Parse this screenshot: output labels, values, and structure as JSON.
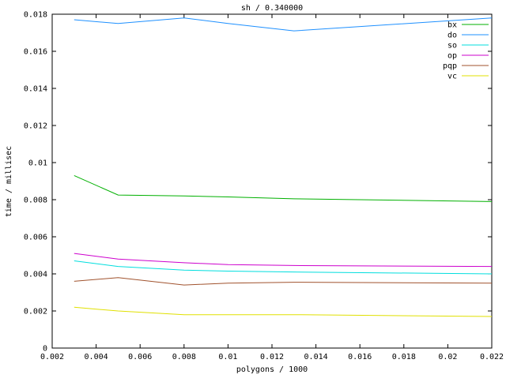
{
  "chart_data": {
    "type": "line",
    "title": "sh / 0.340000",
    "xlabel": "polygons / 1000",
    "ylabel": "time / millisec",
    "xlim": [
      0.002,
      0.022
    ],
    "ylim": [
      0,
      0.018
    ],
    "xtick_labels": [
      "0.002",
      "0.004",
      "0.006",
      "0.008",
      "0.01",
      "0.012",
      "0.014",
      "0.016",
      "0.018",
      "0.02",
      "0.022"
    ],
    "xtick_values": [
      0.002,
      0.004,
      0.006,
      0.008,
      0.01,
      0.012,
      0.014,
      0.016,
      0.018,
      0.02,
      0.022
    ],
    "ytick_labels": [
      "0",
      "0.002",
      "0.004",
      "0.006",
      "0.008",
      "0.01",
      "0.012",
      "0.014",
      "0.016",
      "0.018"
    ],
    "ytick_values": [
      0,
      0.002,
      0.004,
      0.006,
      0.008,
      0.01,
      0.012,
      0.014,
      0.016,
      0.018
    ],
    "x": [
      0.003,
      0.005,
      0.008,
      0.01,
      0.013,
      0.022
    ],
    "series": [
      {
        "name": "bx",
        "color": "#00b000",
        "values": [
          0.0093,
          0.00825,
          0.0082,
          0.00815,
          0.00805,
          0.0079
        ]
      },
      {
        "name": "do",
        "color": "#1e90ff",
        "values": [
          0.0177,
          0.0175,
          0.0178,
          0.0175,
          0.0171,
          0.0178
        ]
      },
      {
        "name": "so",
        "color": "#00dede",
        "values": [
          0.0047,
          0.0044,
          0.0042,
          0.00415,
          0.0041,
          0.004
        ]
      },
      {
        "name": "op",
        "color": "#cd00cd",
        "values": [
          0.0051,
          0.0048,
          0.0046,
          0.0045,
          0.00445,
          0.0044
        ]
      },
      {
        "name": "pqp",
        "color": "#a0522d",
        "values": [
          0.0036,
          0.0038,
          0.0034,
          0.0035,
          0.00355,
          0.0035
        ]
      },
      {
        "name": "vc",
        "color": "#e0e000",
        "values": [
          0.0022,
          0.002,
          0.0018,
          0.0018,
          0.0018,
          0.0017
        ]
      }
    ],
    "legend_position": "top-right",
    "grid": false
  }
}
